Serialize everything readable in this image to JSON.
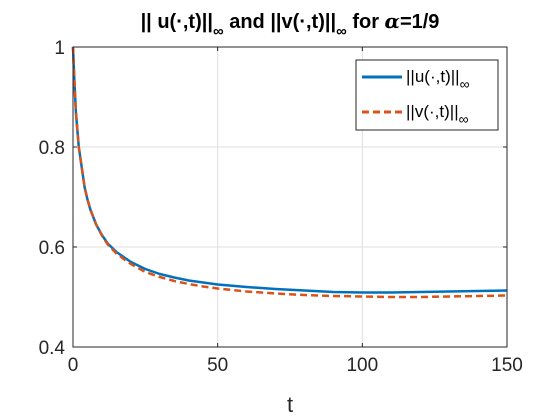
{
  "chart_data": {
    "type": "line",
    "title": {
      "part1": "|| u(",
      "part2": ",t)||",
      "part3": " and ||v(",
      "part4": ",t)||",
      "part5": " for ",
      "alpha": "α",
      "part6": "=1/9",
      "dot": "·",
      "sub": "∞"
    },
    "xlabel": "t",
    "ylabel": "",
    "xlim": [
      0,
      150
    ],
    "ylim": [
      0.4,
      1.0
    ],
    "xticks": [
      0,
      50,
      100,
      150
    ],
    "yticks": [
      0.4,
      0.6,
      0.8,
      1.0
    ],
    "xtick_labels": [
      "0",
      "50",
      "100",
      "150"
    ],
    "ytick_labels": [
      "0.4",
      "0.6",
      "0.8",
      "1"
    ],
    "grid": true,
    "legend_position": "top-right",
    "series": [
      {
        "name": "||u(·,t)||∞",
        "legend": {
          "pre": "||u(",
          "dot": "·",
          "post": ",t)||",
          "sub": "∞"
        },
        "color": "#0072BD",
        "style": "solid",
        "x": [
          0,
          0.5,
          1,
          2,
          3,
          4,
          5,
          6,
          8,
          10,
          12,
          15,
          18,
          20,
          25,
          30,
          35,
          40,
          45,
          50,
          60,
          70,
          80,
          90,
          100,
          110,
          120,
          130,
          140,
          150
        ],
        "y": [
          1.0,
          0.93,
          0.87,
          0.8,
          0.76,
          0.72,
          0.695,
          0.675,
          0.645,
          0.624,
          0.607,
          0.59,
          0.578,
          0.57,
          0.556,
          0.546,
          0.539,
          0.533,
          0.529,
          0.525,
          0.52,
          0.516,
          0.513,
          0.51,
          0.509,
          0.509,
          0.51,
          0.511,
          0.512,
          0.513
        ]
      },
      {
        "name": "||v(·,t)||∞",
        "legend": {
          "pre": "||v(",
          "dot": "·",
          "post": ",t)||",
          "sub": "∞"
        },
        "color": "#D95319",
        "style": "dashed",
        "x": [
          0,
          0.5,
          1,
          2,
          3,
          4,
          5,
          6,
          8,
          10,
          12,
          15,
          18,
          20,
          25,
          30,
          35,
          40,
          45,
          50,
          60,
          70,
          80,
          90,
          100,
          110,
          120,
          130,
          140,
          150
        ],
        "y": [
          1.0,
          0.93,
          0.87,
          0.8,
          0.76,
          0.72,
          0.695,
          0.675,
          0.645,
          0.623,
          0.605,
          0.587,
          0.574,
          0.566,
          0.55,
          0.54,
          0.532,
          0.526,
          0.521,
          0.517,
          0.511,
          0.507,
          0.504,
          0.502,
          0.501,
          0.5,
          0.5,
          0.501,
          0.502,
          0.503
        ]
      }
    ]
  }
}
